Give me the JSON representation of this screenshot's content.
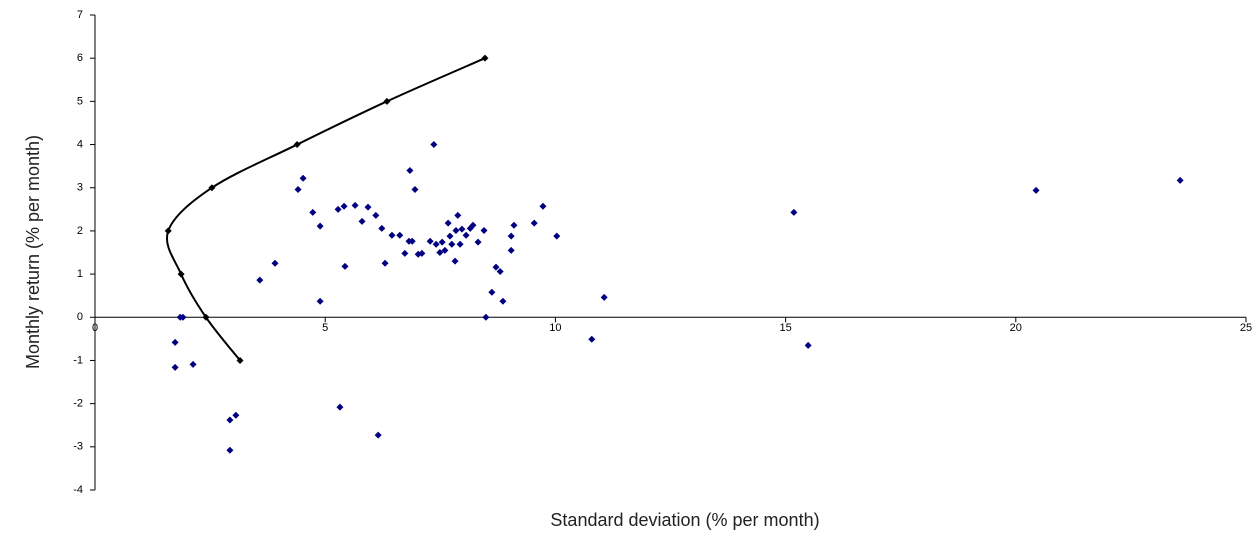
{
  "chart_data": {
    "type": "scatter",
    "xlabel": "Standard deviation (% per month)",
    "ylabel": "Monthly return (% per month)",
    "xlim": [
      0,
      25
    ],
    "ylim": [
      -4,
      7
    ],
    "xticks": [
      0,
      5,
      10,
      15,
      20,
      25
    ],
    "yticks": [
      -4,
      -3,
      -2,
      -1,
      0,
      1,
      2,
      3,
      4,
      5,
      6,
      7
    ],
    "series": [
      {
        "color": "#000080",
        "marker": "diamond",
        "x": [
          1.74,
          1.74,
          1.85,
          1.91,
          2.13,
          2.93,
          3.06,
          2.93,
          3.58,
          3.91,
          4.41,
          4.52,
          4.73,
          4.89,
          4.89,
          5.32,
          5.28,
          5.41,
          5.43,
          5.65,
          5.8,
          5.93,
          6.1,
          6.23,
          6.3,
          6.15,
          6.45,
          6.62,
          6.73,
          6.82,
          6.89,
          6.84,
          6.95,
          7.02,
          7.1,
          7.36,
          7.28,
          7.41,
          7.49,
          7.54,
          7.6,
          7.67,
          7.71,
          7.75,
          7.82,
          7.84,
          7.88,
          7.93,
          7.97,
          8.06,
          8.15,
          8.21,
          8.32,
          8.45,
          8.49,
          8.62,
          8.71,
          8.8,
          8.86,
          9.04,
          9.04,
          9.1,
          9.54,
          9.73,
          10.03,
          10.79,
          11.06,
          15.18,
          15.49,
          20.44,
          23.57
        ],
        "values": [
          -0.58,
          -1.16,
          0,
          0,
          -1.09,
          -2.38,
          -2.27,
          -3.08,
          0.86,
          1.25,
          2.96,
          3.22,
          2.43,
          2.11,
          0.37,
          -2.08,
          2.5,
          2.57,
          1.18,
          2.59,
          2.22,
          2.55,
          2.36,
          2.06,
          1.25,
          -2.73,
          1.9,
          1.9,
          1.48,
          1.76,
          1.76,
          3.4,
          2.96,
          1.46,
          1.48,
          4.0,
          1.76,
          1.69,
          1.5,
          1.74,
          1.55,
          2.18,
          1.88,
          1.69,
          1.3,
          2.01,
          2.36,
          1.69,
          2.04,
          1.9,
          2.06,
          2.13,
          1.74,
          2.01,
          0,
          0.58,
          1.16,
          1.06,
          0.37,
          1.88,
          1.55,
          2.13,
          2.18,
          2.57,
          1.88,
          -0.51,
          0.46,
          2.43,
          -0.65,
          2.94,
          3.17
        ]
      },
      {
        "color": "#000000",
        "marker": "diamond",
        "line": true,
        "x": [
          3.15,
          2.41,
          1.87,
          1.59,
          2.54,
          4.39,
          6.34,
          8.47
        ],
        "values": [
          -1,
          0,
          1,
          2,
          3,
          4,
          5,
          6
        ]
      }
    ]
  }
}
